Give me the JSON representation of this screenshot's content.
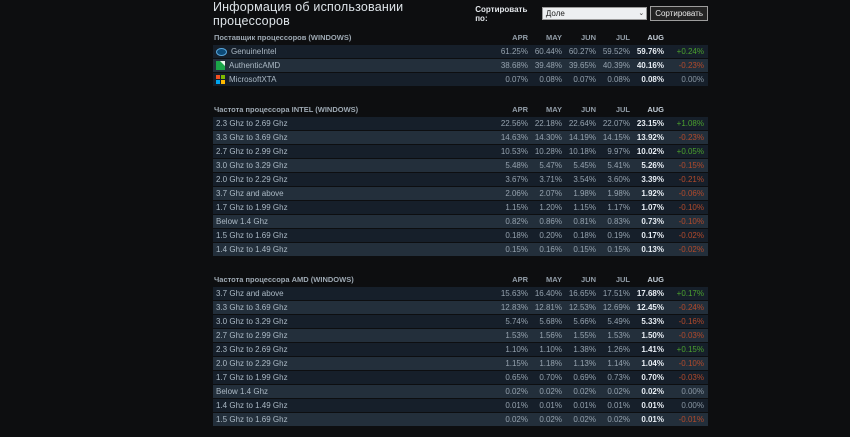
{
  "page": {
    "title": "Информация об использовании процессоров",
    "sort": {
      "label": "Сортировать по:",
      "selected_option": "Доле",
      "button": "Сортировать"
    }
  },
  "months": [
    "APR",
    "MAY",
    "JUN",
    "JUL",
    "AUG"
  ],
  "colors": {
    "positive": "#4ba12e",
    "negative": "#b34a2b",
    "neutral": "#8a97a3",
    "row_dark": "#161f2a",
    "row_light": "#232f3b"
  },
  "chart_data": {
    "type": "table",
    "title": "Информация об использовании процессоров",
    "columns": [
      "APR",
      "MAY",
      "JUN",
      "JUL",
      "AUG",
      "CHANGE"
    ]
  },
  "tables": [
    {
      "header": "Поставщик процессоров (WINDOWS)",
      "rows": [
        {
          "label": "GenuineIntel",
          "icon": "intel-logo-icon",
          "values": [
            "61.25%",
            "60.44%",
            "60.27%",
            "59.52%",
            "59.76%"
          ],
          "change": "+0.24%",
          "trend": "positive"
        },
        {
          "label": "AuthenticAMD",
          "icon": "amd-logo-icon",
          "values": [
            "38.68%",
            "39.48%",
            "39.65%",
            "40.39%",
            "40.16%"
          ],
          "change": "-0.23%",
          "trend": "negative"
        },
        {
          "label": "MicrosoftXTA",
          "icon": "microsoft-logo-icon",
          "values": [
            "0.07%",
            "0.08%",
            "0.07%",
            "0.08%",
            "0.08%"
          ],
          "change": "0.00%",
          "trend": "neutral"
        }
      ]
    },
    {
      "header": "Частота процессора INTEL (WINDOWS)",
      "rows": [
        {
          "label": "2.3 Ghz to 2.69 Ghz",
          "values": [
            "22.56%",
            "22.18%",
            "22.64%",
            "22.07%",
            "23.15%"
          ],
          "change": "+1.08%",
          "trend": "positive"
        },
        {
          "label": "3.3 Ghz to 3.69 Ghz",
          "values": [
            "14.63%",
            "14.30%",
            "14.19%",
            "14.15%",
            "13.92%"
          ],
          "change": "-0.23%",
          "trend": "negative"
        },
        {
          "label": "2.7 Ghz to 2.99 Ghz",
          "values": [
            "10.53%",
            "10.28%",
            "10.18%",
            "9.97%",
            "10.02%"
          ],
          "change": "+0.05%",
          "trend": "positive"
        },
        {
          "label": "3.0 Ghz to 3.29 Ghz",
          "values": [
            "5.48%",
            "5.47%",
            "5.45%",
            "5.41%",
            "5.26%"
          ],
          "change": "-0.15%",
          "trend": "negative"
        },
        {
          "label": "2.0 Ghz to 2.29 Ghz",
          "values": [
            "3.67%",
            "3.71%",
            "3.54%",
            "3.60%",
            "3.39%"
          ],
          "change": "-0.21%",
          "trend": "negative"
        },
        {
          "label": "3.7 Ghz and above",
          "values": [
            "2.06%",
            "2.07%",
            "1.98%",
            "1.98%",
            "1.92%"
          ],
          "change": "-0.06%",
          "trend": "negative"
        },
        {
          "label": "1.7 Ghz to 1.99 Ghz",
          "values": [
            "1.15%",
            "1.20%",
            "1.15%",
            "1.17%",
            "1.07%"
          ],
          "change": "-0.10%",
          "trend": "negative"
        },
        {
          "label": "Below 1.4 Ghz",
          "values": [
            "0.82%",
            "0.86%",
            "0.81%",
            "0.83%",
            "0.73%"
          ],
          "change": "-0.10%",
          "trend": "negative"
        },
        {
          "label": "1.5 Ghz to 1.69 Ghz",
          "values": [
            "0.18%",
            "0.20%",
            "0.18%",
            "0.19%",
            "0.17%"
          ],
          "change": "-0.02%",
          "trend": "negative"
        },
        {
          "label": "1.4 Ghz to 1.49 Ghz",
          "values": [
            "0.15%",
            "0.16%",
            "0.15%",
            "0.15%",
            "0.13%"
          ],
          "change": "-0.02%",
          "trend": "negative"
        }
      ]
    },
    {
      "header": "Частота процессора AMD (WINDOWS)",
      "rows": [
        {
          "label": "3.7 Ghz and above",
          "values": [
            "15.63%",
            "16.40%",
            "16.65%",
            "17.51%",
            "17.68%"
          ],
          "change": "+0.17%",
          "trend": "positive"
        },
        {
          "label": "3.3 Ghz to 3.69 Ghz",
          "values": [
            "12.83%",
            "12.81%",
            "12.53%",
            "12.69%",
            "12.45%"
          ],
          "change": "-0.24%",
          "trend": "negative"
        },
        {
          "label": "3.0 Ghz to 3.29 Ghz",
          "values": [
            "5.74%",
            "5.68%",
            "5.66%",
            "5.49%",
            "5.33%"
          ],
          "change": "-0.16%",
          "trend": "negative"
        },
        {
          "label": "2.7 Ghz to 2.99 Ghz",
          "values": [
            "1.53%",
            "1.56%",
            "1.55%",
            "1.53%",
            "1.50%"
          ],
          "change": "-0.03%",
          "trend": "negative"
        },
        {
          "label": "2.3 Ghz to 2.69 Ghz",
          "values": [
            "1.10%",
            "1.10%",
            "1.38%",
            "1.26%",
            "1.41%"
          ],
          "change": "+0.15%",
          "trend": "positive"
        },
        {
          "label": "2.0 Ghz to 2.29 Ghz",
          "values": [
            "1.15%",
            "1.18%",
            "1.13%",
            "1.14%",
            "1.04%"
          ],
          "change": "-0.10%",
          "trend": "negative"
        },
        {
          "label": "1.7 Ghz to 1.99 Ghz",
          "values": [
            "0.65%",
            "0.70%",
            "0.69%",
            "0.73%",
            "0.70%"
          ],
          "change": "-0.03%",
          "trend": "negative"
        },
        {
          "label": "Below 1.4 Ghz",
          "values": [
            "0.02%",
            "0.02%",
            "0.02%",
            "0.02%",
            "0.02%"
          ],
          "change": "0.00%",
          "trend": "neutral"
        },
        {
          "label": "1.4 Ghz to 1.49 Ghz",
          "values": [
            "0.01%",
            "0.01%",
            "0.01%",
            "0.01%",
            "0.01%"
          ],
          "change": "0.00%",
          "trend": "neutral"
        },
        {
          "label": "1.5 Ghz to 1.69 Ghz",
          "values": [
            "0.02%",
            "0.02%",
            "0.02%",
            "0.02%",
            "0.01%"
          ],
          "change": "-0.01%",
          "trend": "negative"
        }
      ]
    }
  ]
}
